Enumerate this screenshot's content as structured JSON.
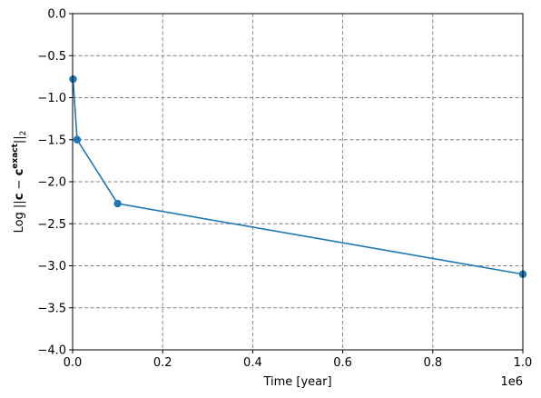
{
  "chart_data": {
    "type": "line",
    "x": [
      1000,
      10000,
      100000,
      1000000
    ],
    "series": [
      {
        "values": [
          -0.78,
          -1.5,
          -2.26,
          -3.1
        ],
        "color": "#1f77b4",
        "marker": "circle"
      }
    ],
    "xlim": [
      0,
      1000000
    ],
    "ylim": [
      -4.0,
      0.0
    ],
    "xticks": [
      0,
      200000,
      400000,
      600000,
      800000,
      1000000
    ],
    "xtick_labels": [
      "0.0",
      "0.2",
      "0.4",
      "0.6",
      "0.8",
      "1.0"
    ],
    "x_offset_label": "1e6",
    "yticks": [
      0.0,
      -0.5,
      -1.0,
      -1.5,
      -2.0,
      -2.5,
      -3.0,
      -3.5,
      -4.0
    ],
    "ytick_labels": [
      "0.0",
      "−0.5",
      "−1.0",
      "−1.5",
      "−2.0",
      "−2.5",
      "−3.0",
      "−3.5",
      "−4.0"
    ],
    "xlabel": "Time [year]",
    "ylabel": {
      "prefix": "Log ||",
      "c": "c",
      "minus": " − ",
      "c2": "c",
      "sup": "exact",
      "close": "||",
      "sub": "2"
    },
    "grid": true
  }
}
